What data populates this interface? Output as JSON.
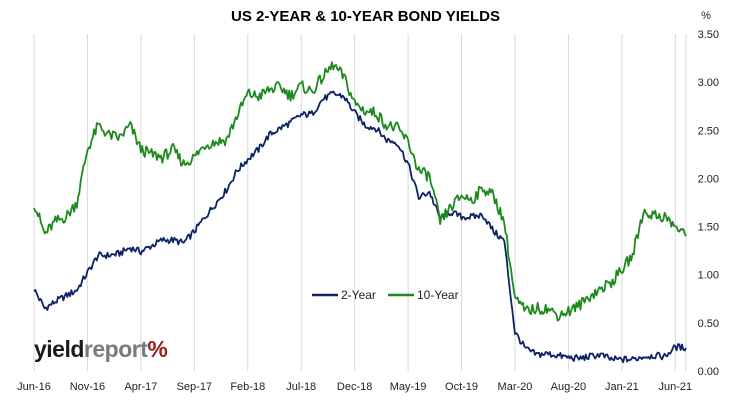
{
  "chart_data": {
    "type": "line",
    "title": "US 2-YEAR & 10-YEAR BOND YIELDS",
    "y_unit_label": "%",
    "ylim": [
      0,
      3.5
    ],
    "y_ticks": [
      "0.00",
      "0.50",
      "1.00",
      "1.50",
      "2.00",
      "2.50",
      "3.00",
      "3.50"
    ],
    "x_ticks": [
      "Jun-16",
      "Nov-16",
      "Apr-17",
      "Sep-17",
      "Feb-18",
      "Jul-18",
      "Dec-18",
      "May-19",
      "Oct-19",
      "Mar-20",
      "Aug-20",
      "Jan-21",
      "Jun-21"
    ],
    "grid": "vertical",
    "legend": "center",
    "series": [
      {
        "name": "2-Year",
        "color": "#0d2366",
        "x": [
          "Jun-16",
          "Jul-16",
          "Aug-16",
          "Sep-16",
          "Oct-16",
          "Nov-16",
          "Dec-16",
          "Jan-17",
          "Feb-17",
          "Mar-17",
          "Apr-17",
          "May-17",
          "Jun-17",
          "Jul-17",
          "Aug-17",
          "Sep-17",
          "Oct-17",
          "Nov-17",
          "Dec-17",
          "Jan-18",
          "Feb-18",
          "Mar-18",
          "Apr-18",
          "May-18",
          "Jun-18",
          "Jul-18",
          "Aug-18",
          "Sep-18",
          "Oct-18",
          "Nov-18",
          "Dec-18",
          "Jan-19",
          "Feb-19",
          "Mar-19",
          "Apr-19",
          "May-19",
          "Jun-19",
          "Jul-19",
          "Aug-19",
          "Sep-19",
          "Oct-19",
          "Nov-19",
          "Dec-19",
          "Jan-20",
          "Feb-20",
          "Mar-20",
          "Apr-20",
          "May-20",
          "Jun-20",
          "Jul-20",
          "Aug-20",
          "Sep-20",
          "Oct-20",
          "Nov-20",
          "Dec-20",
          "Jan-21",
          "Feb-21",
          "Mar-21",
          "Apr-21",
          "May-21",
          "Jun-21",
          "Jul-21"
        ],
        "values": [
          0.85,
          0.65,
          0.72,
          0.78,
          0.84,
          1.02,
          1.2,
          1.2,
          1.22,
          1.28,
          1.24,
          1.3,
          1.36,
          1.36,
          1.33,
          1.45,
          1.6,
          1.74,
          1.88,
          2.08,
          2.2,
          2.3,
          2.45,
          2.52,
          2.58,
          2.66,
          2.67,
          2.82,
          2.88,
          2.85,
          2.68,
          2.55,
          2.52,
          2.4,
          2.37,
          2.15,
          1.8,
          1.86,
          1.58,
          1.65,
          1.6,
          1.6,
          1.62,
          1.45,
          1.35,
          0.4,
          0.23,
          0.17,
          0.18,
          0.16,
          0.14,
          0.13,
          0.15,
          0.17,
          0.12,
          0.12,
          0.12,
          0.15,
          0.16,
          0.15,
          0.25,
          0.24
        ]
      },
      {
        "name": "10-Year",
        "color": "#1e8a1e",
        "x": [
          "Jun-16",
          "Jul-16",
          "Aug-16",
          "Sep-16",
          "Oct-16",
          "Nov-16",
          "Dec-16",
          "Jan-17",
          "Feb-17",
          "Mar-17",
          "Apr-17",
          "May-17",
          "Jun-17",
          "Jul-17",
          "Aug-17",
          "Sep-17",
          "Oct-17",
          "Nov-17",
          "Dec-17",
          "Jan-18",
          "Feb-18",
          "Mar-18",
          "Apr-18",
          "May-18",
          "Jun-18",
          "Jul-18",
          "Aug-18",
          "Sep-18",
          "Oct-18",
          "Nov-18",
          "Dec-18",
          "Jan-19",
          "Feb-19",
          "Mar-19",
          "Apr-19",
          "May-19",
          "Jun-19",
          "Jul-19",
          "Aug-19",
          "Sep-19",
          "Oct-19",
          "Nov-19",
          "Dec-19",
          "Jan-20",
          "Feb-20",
          "Mar-20",
          "Apr-20",
          "May-20",
          "Jun-20",
          "Jul-20",
          "Aug-20",
          "Sep-20",
          "Oct-20",
          "Nov-20",
          "Dec-20",
          "Jan-21",
          "Feb-21",
          "Mar-21",
          "Apr-21",
          "May-21",
          "Jun-21",
          "Jul-21"
        ],
        "values": [
          1.75,
          1.42,
          1.55,
          1.6,
          1.75,
          2.3,
          2.55,
          2.45,
          2.42,
          2.55,
          2.3,
          2.25,
          2.22,
          2.3,
          2.15,
          2.22,
          2.35,
          2.38,
          2.4,
          2.65,
          2.88,
          2.85,
          2.92,
          2.95,
          2.86,
          2.96,
          2.9,
          3.05,
          3.18,
          3.05,
          2.78,
          2.7,
          2.68,
          2.55,
          2.52,
          2.38,
          2.08,
          2.02,
          1.55,
          1.7,
          1.82,
          1.78,
          1.9,
          1.82,
          1.55,
          0.75,
          0.62,
          0.65,
          0.65,
          0.58,
          0.62,
          0.68,
          0.78,
          0.85,
          0.92,
          1.05,
          1.2,
          1.65,
          1.62,
          1.6,
          1.5,
          1.4
        ]
      }
    ]
  }
}
